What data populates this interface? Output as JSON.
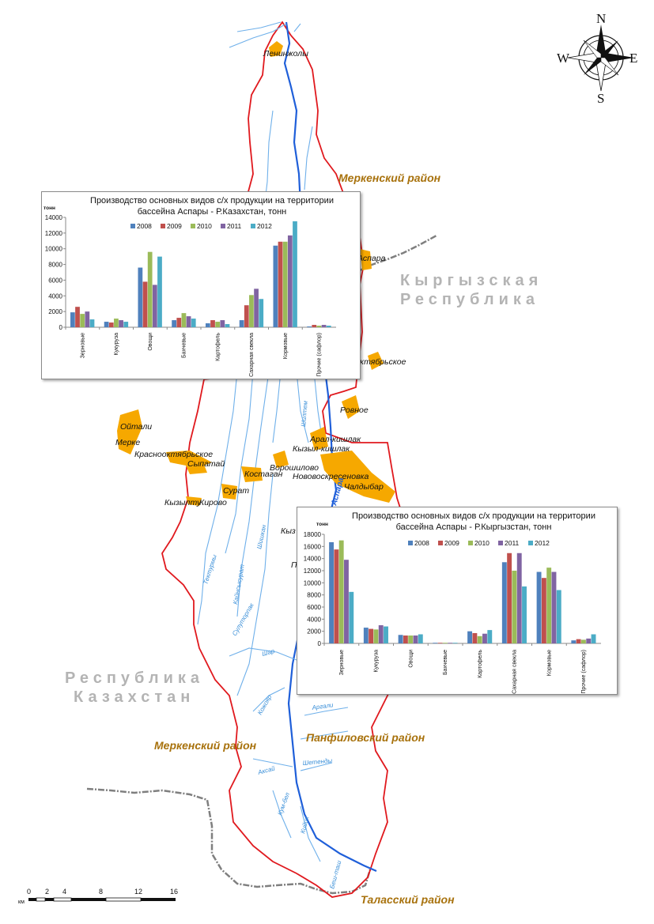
{
  "map": {
    "districts": {
      "merke_north": "Меркенский район",
      "merke_south": "Меркенский район",
      "panfilov": "Панфиловский район",
      "talas": "Таласский район"
    },
    "countries": {
      "kyrgyz_line1": "Кыргызская",
      "kyrgyz_line2": "Республика",
      "kazakh_line1": "Республика",
      "kazakh_line2": "Казахстан"
    },
    "settlements": {
      "leninzholy": "Ленинжолы",
      "aspara": "Аспара",
      "oktyabrskoe": "ктябрьское",
      "rovnoe": "Ровное",
      "oitali": "Ойтали",
      "merke": "Мерке",
      "aral_kishlak": "Арал-кишлак",
      "kyzyl_kishlak": "Кызыл-кишлак",
      "krasnooktyabrskoe": "Краснооктябрьское",
      "sypatai": "Сыпатай",
      "voroshilovo": "Ворошилово",
      "novovoskresenovka": "Нововоскресеновка",
      "kostagan": "Костаган",
      "chaldybar": "Чалдыбар",
      "surat": "Сурат",
      "kyzyltu": "Кызылту",
      "kirovo": "Кирово",
      "kyz": "Кыз",
      "p": "П"
    },
    "rivers": {
      "aspara": "Аспара",
      "tektyrmi": "Тектурмы",
      "kainsysurat": "Кайнсысурат",
      "shyshkan": "Шишкан",
      "sulu_tor": "Сулуторпак",
      "shar": "Шар",
      "kojoyar": "Кожояр",
      "argali": "Аргали",
      "aksai": "Аксай",
      "shetendy": "Шетенды",
      "kum_bel": "Кум-бел",
      "kiyik": "Кийик",
      "besh_tash": "Беш-таш",
      "shiltem": "Шилтем"
    },
    "compass": {
      "n": "N",
      "s": "S",
      "e": "E",
      "w": "W"
    },
    "scale": {
      "unit": "км",
      "ticks": [
        "0",
        "2",
        "4",
        "8",
        "12",
        "16"
      ]
    }
  },
  "charts": [
    {
      "title_line1": "Производство основных видов с/х продукции на территории",
      "title_line2": "бассейна Аспары - Р.Казахстан, тонн",
      "unit_label": "тонн",
      "chart_data": {
        "type": "bar",
        "title": "Производство основных видов с/х продукции на территории бассейна Аспары - Р.Казахстан, тонн",
        "ylabel": "тонн",
        "ylim": [
          0,
          14000
        ],
        "ytick_step": 2000,
        "ytick_labels": [
          "0",
          "2000",
          "4000",
          "6000",
          "8000",
          "10000",
          "12000",
          "14000"
        ],
        "grid": false,
        "legend": "top",
        "categories": [
          "Зерновые",
          "Кукуруза",
          "Овощи",
          "Бахчевые",
          "Картофель",
          "Сахарная свекла",
          "Кормовые",
          "Прочие (сафлор)"
        ],
        "series": [
          {
            "name": "2008",
            "color": "#4f81bd",
            "values": [
              1900,
              700,
              7600,
              900,
              500,
              900,
              10400,
              100
            ]
          },
          {
            "name": "2009",
            "color": "#c0504d",
            "values": [
              2600,
              600,
              5800,
              1200,
              900,
              2800,
              10900,
              300
            ]
          },
          {
            "name": "2010",
            "color": "#9bbb59",
            "values": [
              1700,
              1100,
              9600,
              1800,
              700,
              4100,
              10900,
              200
            ]
          },
          {
            "name": "2011",
            "color": "#8064a2",
            "values": [
              2000,
              900,
              5400,
              1400,
              900,
              4900,
              11700,
              300
            ]
          },
          {
            "name": "2012",
            "color": "#4bacc6",
            "values": [
              1000,
              700,
              9000,
              1100,
              400,
              3600,
              13500,
              200
            ]
          }
        ]
      }
    },
    {
      "title_line1": "Производство основных видов с/х продукции на территории",
      "title_line2": "бассейна Аспары - Р.Кыргызстан, тонн",
      "unit_label": "тонн",
      "chart_data": {
        "type": "bar",
        "title": "Производство основных видов с/х продукции на территории бассейна Аспары - Р.Кыргызстан, тонн",
        "ylabel": "тонн",
        "ylim": [
          0,
          18000
        ],
        "ytick_step": 2000,
        "ytick_labels": [
          "0",
          "2000",
          "4000",
          "6000",
          "8000",
          "10000",
          "12000",
          "14000",
          "16000",
          "18000"
        ],
        "grid": false,
        "legend": "top",
        "categories": [
          "Зерновые",
          "Кукуруза",
          "Овощи",
          "Бахчевые",
          "Картофель",
          "Сахарная свекла",
          "Кормовые",
          "Прочие (сафлор)"
        ],
        "series": [
          {
            "name": "2008",
            "color": "#4f81bd",
            "values": [
              16700,
              2600,
              1400,
              100,
              2000,
              13400,
              11800,
              500
            ]
          },
          {
            "name": "2009",
            "color": "#c0504d",
            "values": [
              15500,
              2400,
              1300,
              100,
              1700,
              14900,
              10800,
              700
            ]
          },
          {
            "name": "2010",
            "color": "#9bbb59",
            "values": [
              17000,
              2300,
              1300,
              100,
              1200,
              12000,
              12500,
              600
            ]
          },
          {
            "name": "2011",
            "color": "#8064a2",
            "values": [
              13800,
              3000,
              1300,
              100,
              1600,
              14900,
              11800,
              800
            ]
          },
          {
            "name": "2012",
            "color": "#4bacc6",
            "values": [
              8500,
              2800,
              1500,
              100,
              2200,
              9400,
              8800,
              1500
            ]
          }
        ]
      }
    }
  ]
}
